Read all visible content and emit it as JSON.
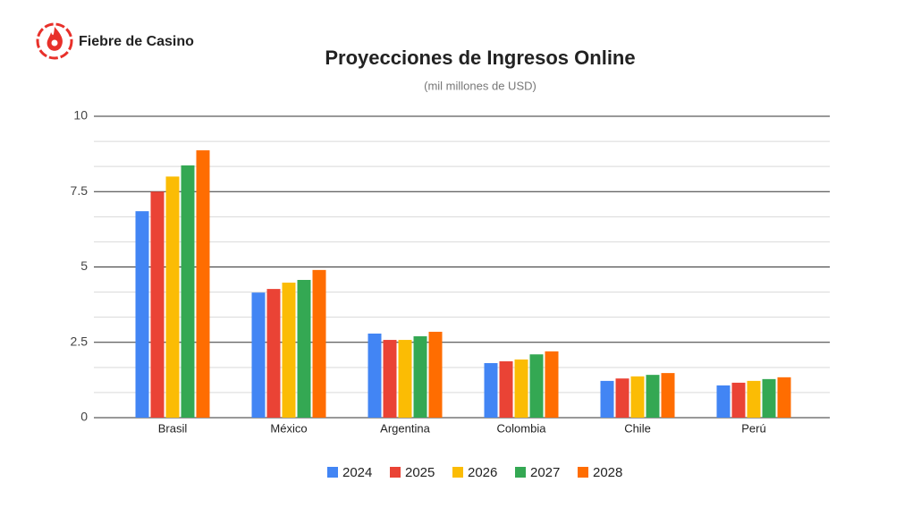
{
  "brand": "Fiebre de Casino",
  "chart_data": {
    "type": "bar",
    "title": "Proyecciones de Ingresos Online",
    "subtitle": "(mil millones de USD)",
    "categories": [
      "Brasil",
      "México",
      "Argentina",
      "Colombia",
      "Chile",
      "Perú"
    ],
    "series": [
      {
        "name": "2024",
        "color": "#4285f4",
        "values": [
          6.85,
          4.15,
          2.79,
          1.81,
          1.22,
          1.07
        ]
      },
      {
        "name": "2025",
        "color": "#ea4335",
        "values": [
          7.5,
          4.27,
          2.58,
          1.87,
          1.3,
          1.16
        ]
      },
      {
        "name": "2026",
        "color": "#fbbc04",
        "values": [
          8.0,
          4.48,
          2.58,
          1.93,
          1.37,
          1.22
        ]
      },
      {
        "name": "2027",
        "color": "#34a853",
        "values": [
          8.37,
          4.57,
          2.7,
          2.1,
          1.42,
          1.28
        ]
      },
      {
        "name": "2028",
        "color": "#ff6d01",
        "values": [
          8.87,
          4.9,
          2.85,
          2.2,
          1.48,
          1.34
        ]
      }
    ],
    "ylim": [
      0,
      10
    ],
    "yticks": [
      0,
      2.5,
      5,
      7.5,
      10
    ],
    "grid": true,
    "minor_grid_divisions": 3,
    "legend": "bottom"
  }
}
